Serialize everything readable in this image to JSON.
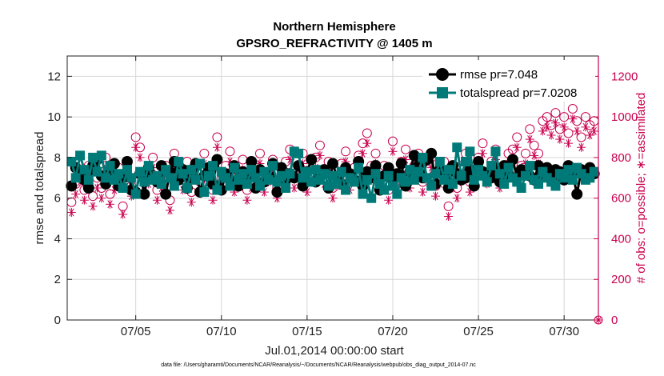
{
  "chart_data": {
    "type": "line",
    "title": "Northern Hemisphere",
    "subtitle": "GPSRO_REFRACTIVITY @ 1405 m",
    "xlabel": "Jul.01,2014 00:00:00 start",
    "ylabel": "rmse and totalspread",
    "y2label": "# of obs: o=possible; ∗=assimilated",
    "footnote": "data file: /Users/gharamti/Documents/NCAR/Reanalysis/~/Documents/NCAR/Reanalysis/webpub/obs_diag_output_2014-07.nc",
    "xlim": [
      1,
      32
    ],
    "ylim": [
      0,
      13
    ],
    "y2lim": [
      0,
      1300
    ],
    "x_ticks": [
      5,
      10,
      15,
      20,
      25,
      30
    ],
    "x_tick_labels": [
      "07/05",
      "07/10",
      "07/15",
      "07/20",
      "07/25",
      "07/30"
    ],
    "y_ticks": [
      0,
      2,
      4,
      6,
      8,
      10,
      12
    ],
    "y_tick_labels": [
      "0",
      "2",
      "4",
      "6",
      "8",
      "10",
      "12"
    ],
    "y2_ticks": [
      0,
      200,
      400,
      600,
      800,
      1000,
      1200
    ],
    "y2_tick_labels": [
      "0",
      "200",
      "400",
      "600",
      "800",
      "1000",
      "1200"
    ],
    "grid": true,
    "legend_position": "top-right",
    "colors": {
      "rmse": "#000000",
      "totalspread": "#007a78",
      "obs": "#c8004e"
    },
    "series": [
      {
        "name": "rmse pr=7.048",
        "axis": "left",
        "marker": "circle",
        "x": [
          1.25,
          1.5,
          1.75,
          2.0,
          2.25,
          2.5,
          2.75,
          3.0,
          3.25,
          3.5,
          3.75,
          4.0,
          4.25,
          4.5,
          4.75,
          5.0,
          5.25,
          5.5,
          5.75,
          6.0,
          6.25,
          6.5,
          6.75,
          7.0,
          7.25,
          7.5,
          7.75,
          8.0,
          8.25,
          8.5,
          8.75,
          9.0,
          9.25,
          9.5,
          9.75,
          10.0,
          10.25,
          10.5,
          10.75,
          11.0,
          11.25,
          11.5,
          11.75,
          12.0,
          12.25,
          12.5,
          12.75,
          13.0,
          13.25,
          13.5,
          13.75,
          14.0,
          14.25,
          14.5,
          14.75,
          15.0,
          15.25,
          15.5,
          15.75,
          16.0,
          16.25,
          16.5,
          16.75,
          17.0,
          17.25,
          17.5,
          17.75,
          18.0,
          18.25,
          18.5,
          18.75,
          19.0,
          19.25,
          19.5,
          19.75,
          20.0,
          20.25,
          20.5,
          20.75,
          21.0,
          21.25,
          21.5,
          21.75,
          22.0,
          22.25,
          22.5,
          22.75,
          23.0,
          23.25,
          23.5,
          23.75,
          24.0,
          24.25,
          24.5,
          24.75,
          25.0,
          25.25,
          25.5,
          25.75,
          26.0,
          26.25,
          26.5,
          26.75,
          27.0,
          27.25,
          27.5,
          27.75,
          28.0,
          28.25,
          28.5,
          28.75,
          29.0,
          29.25,
          29.5,
          29.75,
          30.0,
          30.25,
          30.5,
          30.75,
          31.0,
          31.25,
          31.5,
          31.75
        ],
        "values": [
          6.6,
          7.5,
          7.2,
          6.9,
          6.5,
          7.6,
          7.9,
          7.1,
          6.7,
          7.3,
          7.7,
          6.6,
          7.0,
          7.8,
          6.4,
          6.3,
          7.2,
          6.2,
          7.5,
          7.1,
          6.8,
          7.6,
          6.2,
          7.3,
          7.8,
          6.9,
          7.4,
          6.5,
          7.0,
          7.7,
          6.3,
          7.1,
          7.5,
          6.7,
          7.9,
          6.4,
          7.2,
          6.9,
          7.6,
          6.6,
          7.3,
          7.0,
          7.8,
          6.5,
          7.4,
          6.8,
          7.1,
          7.7,
          6.3,
          7.5,
          6.9,
          7.2,
          7.0,
          7.6,
          6.6,
          7.3,
          7.9,
          6.8,
          7.1,
          7.4,
          6.5,
          7.7,
          7.0,
          6.7,
          7.5,
          7.2,
          6.9,
          7.8,
          6.6,
          7.3,
          7.0,
          7.6,
          6.4,
          7.1,
          7.5,
          6.9,
          7.2,
          7.7,
          6.6,
          7.3,
          8.1,
          7.6,
          7.0,
          7.9,
          8.2,
          6.7,
          7.4,
          7.1,
          6.5,
          7.6,
          7.2,
          6.9,
          7.0,
          7.4,
          6.6,
          7.8,
          7.3,
          7.1,
          7.0,
          7.5,
          6.8,
          7.6,
          7.2,
          7.9,
          7.0,
          7.4,
          7.3,
          7.1,
          6.9,
          7.6,
          7.2,
          7.5,
          7.0,
          7.4,
          7.3,
          6.9,
          7.6,
          7.2,
          6.2,
          7.4,
          7.1,
          7.5,
          7.2
        ]
      },
      {
        "name": "totalspread pr=7.0208",
        "axis": "left",
        "marker": "square",
        "x": [
          1.25,
          1.5,
          1.75,
          2.0,
          2.25,
          2.5,
          2.75,
          3.0,
          3.25,
          3.5,
          3.75,
          4.0,
          4.25,
          4.5,
          4.75,
          5.0,
          5.25,
          5.5,
          5.75,
          6.0,
          6.25,
          6.5,
          6.75,
          7.0,
          7.25,
          7.5,
          7.75,
          8.0,
          8.25,
          8.5,
          8.75,
          9.0,
          9.25,
          9.5,
          9.75,
          10.0,
          10.25,
          10.5,
          10.75,
          11.0,
          11.25,
          11.5,
          11.75,
          12.0,
          12.25,
          12.5,
          12.75,
          13.0,
          13.25,
          13.5,
          13.75,
          14.0,
          14.25,
          14.5,
          14.75,
          15.0,
          15.25,
          15.5,
          15.75,
          16.0,
          16.25,
          16.5,
          16.75,
          17.0,
          17.25,
          17.5,
          17.75,
          18.0,
          18.25,
          18.5,
          18.75,
          19.0,
          19.25,
          19.5,
          19.75,
          20.0,
          20.25,
          20.5,
          20.75,
          21.0,
          21.25,
          21.5,
          21.75,
          22.0,
          22.25,
          22.5,
          22.75,
          23.0,
          23.25,
          23.5,
          23.75,
          24.0,
          24.25,
          24.5,
          24.75,
          25.0,
          25.25,
          25.5,
          25.75,
          26.0,
          26.25,
          26.5,
          26.75,
          27.0,
          27.25,
          27.5,
          27.75,
          28.0,
          28.25,
          28.5,
          28.75,
          29.0,
          29.25,
          29.5,
          29.75,
          30.0,
          30.25,
          30.5,
          30.75,
          31.0,
          31.25,
          31.5,
          31.75
        ],
        "values": [
          7.8,
          7.0,
          8.1,
          7.4,
          6.9,
          8.0,
          7.3,
          8.1,
          7.0,
          7.6,
          6.9,
          7.2,
          6.5,
          7.4,
          7.0,
          6.2,
          7.3,
          6.8,
          7.6,
          6.9,
          7.1,
          6.7,
          7.4,
          7.0,
          6.6,
          7.8,
          7.2,
          6.5,
          7.4,
          6.9,
          7.7,
          6.3,
          7.1,
          7.6,
          6.4,
          7.3,
          7.0,
          6.6,
          7.5,
          6.9,
          7.2,
          6.7,
          7.4,
          7.0,
          6.6,
          7.3,
          6.9,
          7.6,
          6.8,
          7.1,
          6.5,
          7.2,
          8.3,
          8.2,
          7.0,
          7.3,
          6.8,
          7.4,
          6.9,
          7.2,
          6.6,
          7.1,
          6.7,
          7.3,
          6.4,
          7.0,
          6.8,
          7.5,
          6.2,
          6.9,
          6.0,
          7.2,
          6.7,
          6.4,
          7.1,
          6.6,
          6.2,
          7.0,
          6.8,
          7.4,
          6.9,
          7.3,
          8.0,
          7.0,
          6.6,
          7.2,
          7.8,
          6.9,
          7.4,
          6.7,
          8.5,
          7.1,
          7.8,
          8.3,
          6.9,
          7.4,
          7.1,
          6.8,
          7.6,
          8.3,
          7.2,
          6.7,
          7.5,
          7.0,
          6.8,
          6.5,
          7.1,
          7.6,
          6.9,
          6.7,
          7.3,
          7.0,
          6.8,
          6.6,
          7.2,
          7.0,
          7.4,
          6.9,
          7.5,
          7.2,
          6.9,
          7.0,
          7.3
        ]
      },
      {
        "name": "possible",
        "axis": "right",
        "marker": "open-circle",
        "x": [
          1.25,
          1.5,
          1.75,
          2.0,
          2.25,
          2.5,
          2.75,
          3.0,
          3.25,
          3.5,
          3.75,
          4.0,
          4.25,
          4.5,
          4.75,
          5.0,
          5.25,
          5.5,
          5.75,
          6.0,
          6.25,
          6.5,
          6.75,
          7.0,
          7.25,
          7.5,
          7.75,
          8.0,
          8.25,
          8.5,
          8.75,
          9.0,
          9.25,
          9.5,
          9.75,
          10.0,
          10.25,
          10.5,
          10.75,
          11.0,
          11.25,
          11.5,
          11.75,
          12.0,
          12.25,
          12.5,
          12.75,
          13.0,
          13.25,
          13.5,
          13.75,
          14.0,
          14.25,
          14.5,
          14.75,
          15.0,
          15.25,
          15.5,
          15.75,
          16.0,
          16.25,
          16.5,
          16.75,
          17.0,
          17.25,
          17.5,
          17.75,
          18.0,
          18.25,
          18.5,
          18.75,
          19.0,
          19.25,
          19.5,
          19.75,
          20.0,
          20.25,
          20.5,
          20.75,
          21.0,
          21.25,
          21.5,
          21.75,
          22.0,
          22.25,
          22.5,
          22.75,
          23.0,
          23.25,
          23.5,
          23.75,
          24.0,
          24.25,
          24.5,
          24.75,
          25.0,
          25.25,
          25.5,
          25.75,
          26.0,
          26.25,
          26.5,
          26.75,
          27.0,
          27.25,
          27.5,
          27.75,
          28.0,
          28.25,
          28.5,
          28.75,
          29.0,
          29.25,
          29.5,
          29.75,
          30.0,
          30.25,
          30.5,
          30.75,
          31.0,
          31.25,
          31.5,
          31.75
        ],
        "values": [
          580,
          670,
          730,
          640,
          760,
          610,
          700,
          650,
          800,
          620,
          690,
          750,
          560,
          780,
          660,
          900,
          850,
          680,
          720,
          800,
          640,
          700,
          760,
          590,
          820,
          740,
          690,
          780,
          630,
          750,
          680,
          820,
          710,
          640,
          900,
          700,
          760,
          830,
          680,
          730,
          790,
          640,
          700,
          760,
          820,
          680,
          730,
          790,
          650,
          720,
          780,
          840,
          700,
          760,
          820,
          680,
          740,
          800,
          860,
          720,
          780,
          650,
          710,
          770,
          830,
          690,
          750,
          810,
          870,
          920,
          760,
          820,
          700,
          760,
          640,
          880,
          720,
          780,
          840,
          700,
          760,
          820,
          680,
          740,
          800,
          660,
          720,
          780,
          560,
          700,
          650,
          760,
          820,
          680,
          740,
          800,
          870,
          720,
          780,
          840,
          700,
          760,
          820,
          840,
          900,
          760,
          820,
          940,
          860,
          820,
          980,
          1000,
          960,
          1020,
          940,
          1000,
          920,
          1040,
          980,
          900,
          1000,
          960,
          980
        ]
      },
      {
        "name": "assimilated",
        "axis": "right",
        "marker": "asterisk",
        "x": [
          1.25,
          1.5,
          1.75,
          2.0,
          2.25,
          2.5,
          2.75,
          3.0,
          3.25,
          3.5,
          3.75,
          4.0,
          4.25,
          4.5,
          4.75,
          5.0,
          5.25,
          5.5,
          5.75,
          6.0,
          6.25,
          6.5,
          6.75,
          7.0,
          7.25,
          7.5,
          7.75,
          8.0,
          8.25,
          8.5,
          8.75,
          9.0,
          9.25,
          9.5,
          9.75,
          10.0,
          10.25,
          10.5,
          10.75,
          11.0,
          11.25,
          11.5,
          11.75,
          12.0,
          12.25,
          12.5,
          12.75,
          13.0,
          13.25,
          13.5,
          13.75,
          14.0,
          14.25,
          14.5,
          14.75,
          15.0,
          15.25,
          15.5,
          15.75,
          16.0,
          16.25,
          16.5,
          16.75,
          17.0,
          17.25,
          17.5,
          17.75,
          18.0,
          18.25,
          18.5,
          18.75,
          19.0,
          19.25,
          19.5,
          19.75,
          20.0,
          20.25,
          20.5,
          20.75,
          21.0,
          21.25,
          21.5,
          21.75,
          22.0,
          22.25,
          22.5,
          22.75,
          23.0,
          23.25,
          23.5,
          23.75,
          24.0,
          24.25,
          24.5,
          24.75,
          25.0,
          25.25,
          25.5,
          25.75,
          26.0,
          26.25,
          26.5,
          26.75,
          27.0,
          27.25,
          27.5,
          27.75,
          28.0,
          28.25,
          28.5,
          28.75,
          29.0,
          29.25,
          29.5,
          29.75,
          30.0,
          30.25,
          30.5,
          30.75,
          31.0,
          31.25,
          31.5,
          31.75
        ],
        "values": [
          530,
          620,
          680,
          590,
          710,
          560,
          650,
          600,
          750,
          570,
          640,
          700,
          520,
          730,
          610,
          850,
          800,
          630,
          670,
          750,
          590,
          650,
          710,
          540,
          770,
          690,
          640,
          730,
          580,
          700,
          630,
          770,
          660,
          590,
          850,
          650,
          710,
          780,
          630,
          680,
          740,
          590,
          650,
          710,
          770,
          630,
          680,
          740,
          600,
          670,
          730,
          790,
          650,
          710,
          770,
          630,
          690,
          750,
          810,
          670,
          730,
          600,
          660,
          720,
          780,
          640,
          700,
          760,
          820,
          870,
          710,
          770,
          650,
          710,
          590,
          830,
          670,
          730,
          790,
          650,
          710,
          770,
          630,
          690,
          750,
          610,
          670,
          730,
          510,
          650,
          600,
          710,
          770,
          630,
          690,
          750,
          820,
          670,
          730,
          790,
          650,
          710,
          770,
          790,
          850,
          710,
          770,
          890,
          810,
          770,
          930,
          950,
          910,
          970,
          890,
          950,
          870,
          990,
          930,
          850,
          950,
          910,
          930
        ]
      }
    ]
  }
}
